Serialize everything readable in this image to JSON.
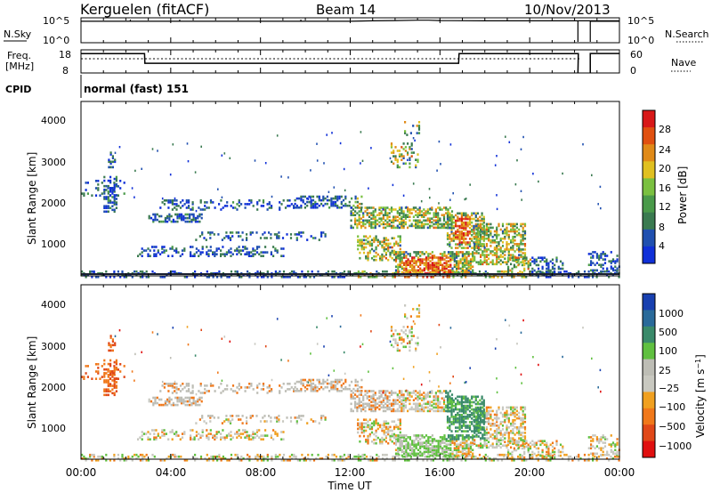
{
  "header": {
    "station": "Kerguelen (fitACF)",
    "beam": "Beam 14",
    "date": "10/Nov/2013"
  },
  "top_panels": {
    "nsky_label": "N.Sky",
    "nsky_ticks": [
      "10^5",
      "10^0"
    ],
    "nsearch_label": "N.Search",
    "nsearch_ticks": [
      "10^5",
      "10^0"
    ],
    "freq_label_1": "Freq.",
    "freq_label_2": "[MHz]",
    "freq_ticks": [
      "18",
      "8"
    ],
    "nave_label": "Nave",
    "nave_ticks": [
      "60",
      "0"
    ],
    "cpid_label": "CPID",
    "cpid_value": "normal (fast) 151"
  },
  "panels": {
    "ylabel": "Slant Range [km]",
    "yticks": [
      "4000",
      "3000",
      "2000",
      "1000"
    ],
    "xlabel": "Time UT",
    "xticks": [
      "00:00",
      "04:00",
      "08:00",
      "12:00",
      "16:00",
      "20:00",
      "00:00"
    ]
  },
  "colors": {
    "power": [
      "#1030d8",
      "#2050b0",
      "#3a7a50",
      "#4a9a4a",
      "#7ac040",
      "#e0c020",
      "#e08a18",
      "#e05010",
      "#d81818"
    ],
    "velocity": [
      "#e01010",
      "#e04818",
      "#f0781a",
      "#f0a020",
      "#c8c8c0",
      "#bdbdb5",
      "#60c040",
      "#3a8a6a",
      "#2a6a9a",
      "#1840b0"
    ]
  },
  "chart_data": [
    {
      "type": "line",
      "title": "N.Sky / N.Search",
      "x_range": [
        "00:00",
        "24:00"
      ],
      "y_scale": "log",
      "ylim": [
        1,
        100000
      ],
      "series": [
        {
          "name": "N.Sky",
          "x": [
            "00:00",
            "06:00",
            "12:00",
            "13:00",
            "14:00",
            "15:00",
            "15:30",
            "16:00",
            "18:00",
            "22:10",
            "22:40",
            "24:00"
          ],
          "y": [
            40000,
            40000,
            40000,
            50000,
            60000,
            70000,
            70000,
            60000,
            50000,
            50000,
            50000,
            50000
          ]
        }
      ]
    },
    {
      "type": "line",
      "title": "Freq. / Nave",
      "x_range": [
        "00:00",
        "24:00"
      ],
      "ylim": [
        8,
        18
      ],
      "series": [
        {
          "name": "Freq.",
          "x": [
            "00:00",
            "02:50",
            "02:51",
            "16:50",
            "16:51",
            "22:10"
          ],
          "y": [
            16.4,
            16.4,
            12.2,
            12.2,
            16.4,
            16.4
          ]
        }
      ]
    },
    {
      "type": "heatmap",
      "title": "Power [dB]",
      "x_range": [
        "00:00",
        "24:00"
      ],
      "ylim": [
        180,
        4500
      ],
      "colorbar_ticks": [
        4,
        8,
        12,
        16,
        20,
        24,
        28
      ],
      "colorbar_label": "Power [dB]"
    },
    {
      "type": "heatmap",
      "title": "Velocity [m s^-1]",
      "x_range": [
        "00:00",
        "24:00"
      ],
      "ylim": [
        180,
        4500
      ],
      "colorbar_ticks": [
        1000,
        500,
        100,
        25,
        -25,
        -100,
        -500,
        -1000
      ],
      "colorbar_label": "Velocity [m s^-1]"
    }
  ]
}
